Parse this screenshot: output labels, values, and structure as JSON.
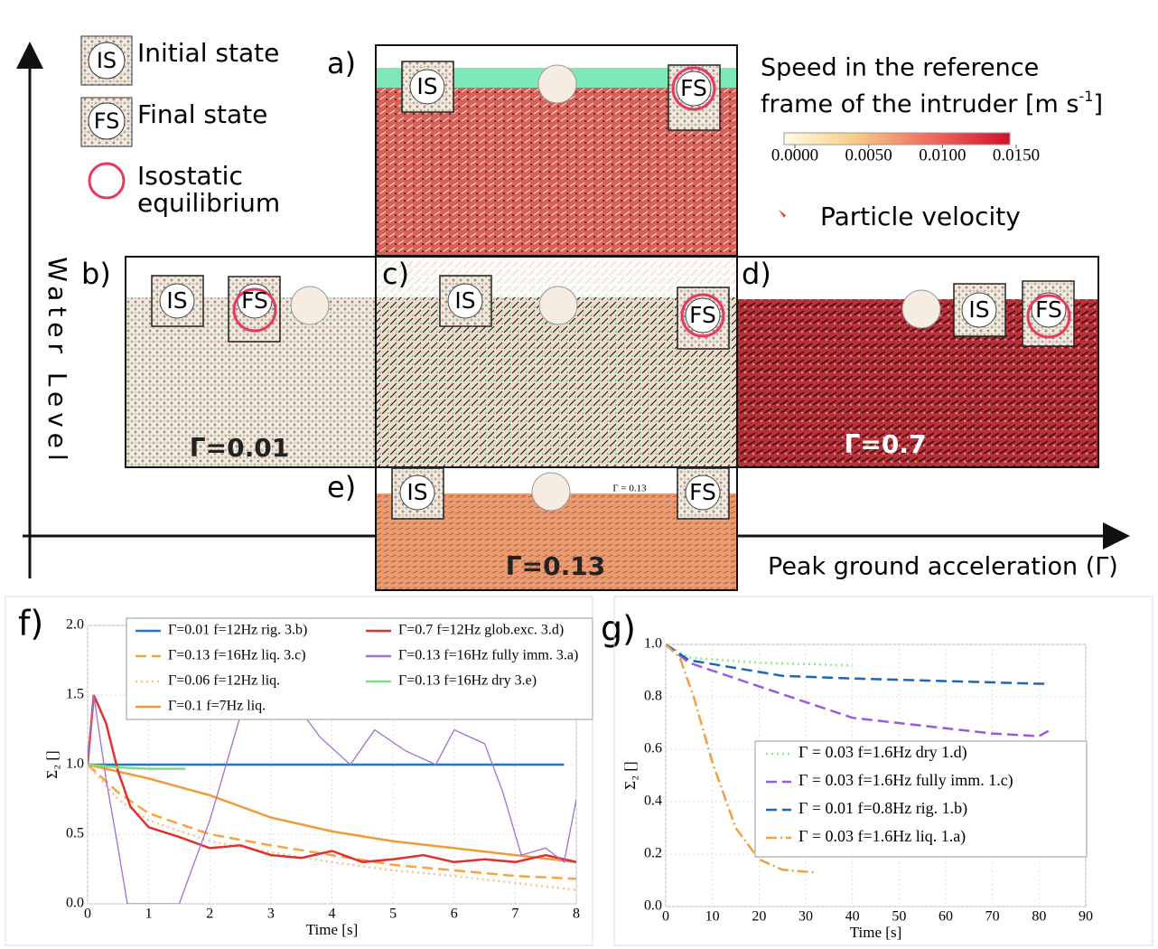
{
  "diagram": {
    "legend": {
      "initial_tag": "IS",
      "initial": "Initial state",
      "final_tag": "FS",
      "final": "Final state",
      "iso_line1": "Isostatic",
      "iso_line2": "equilibrium"
    },
    "colorbar": {
      "title_line1": "Speed in the reference",
      "title_line2": "frame of the intruder [m s",
      "title_sup": "-1",
      "title_end": "]",
      "lim": [
        0,
        0.015
      ],
      "ticks": [
        {
          "value": 0,
          "label": "0.0000"
        },
        {
          "value": 0.005,
          "label": "0.0050"
        },
        {
          "value": 0.01,
          "label": "0.0100"
        },
        {
          "value": 0.015,
          "label": "0.0150"
        }
      ]
    },
    "particle_velocity": "Particle velocity",
    "y_axis": "Water Level",
    "x_axis": "Peak ground acceleration (Γ)",
    "panels": {
      "a": "a)",
      "b": "b)",
      "c": "c)",
      "d": "d)",
      "e": "e)",
      "f": "f)",
      "g": "g)"
    },
    "tags": {
      "is": "IS",
      "fs": "FS"
    },
    "gamma": {
      "b": "Γ=0.01",
      "d": "Γ=0.7",
      "e": "Γ=0.13",
      "e_small": "Γ = 0.13"
    }
  },
  "chart_data": [
    {
      "type": "line",
      "xlabel": "Time [s]",
      "ylabel": "Σ₂ []",
      "xlim": [
        0,
        8
      ],
      "ylim": [
        0,
        2.0
      ],
      "grid": true,
      "xticks": [
        0,
        1,
        2,
        3,
        4,
        5,
        6,
        7,
        8
      ],
      "yticks": [
        {
          "value": 0,
          "label": "0.0"
        },
        {
          "value": 0.5,
          "label": "0.5"
        },
        {
          "value": 1,
          "label": "1.0"
        },
        {
          "value": 1.5,
          "label": "1.5"
        },
        {
          "value": 2,
          "label": "2.0"
        }
      ],
      "series": [
        {
          "name": "Γ=0.01 f=12Hz rig. 3.b)",
          "color": "#1f77d0",
          "linestyle": "solid",
          "x": [
            0,
            1,
            2,
            3,
            4,
            5,
            6,
            7,
            7.8
          ],
          "values": [
            1,
            1,
            1,
            1,
            1,
            1,
            1,
            1,
            1
          ]
        },
        {
          "name": "Γ=0.13 f=16Hz liq. 3.c)",
          "color": "#f5a540",
          "linestyle": "dashed",
          "x": [
            0,
            0.5,
            1,
            2,
            3,
            4,
            5,
            6,
            7,
            8
          ],
          "values": [
            1,
            0.8,
            0.65,
            0.5,
            0.42,
            0.35,
            0.28,
            0.24,
            0.2,
            0.18
          ]
        },
        {
          "name": "Γ=0.06 f=12Hz liq.",
          "color": "#f8c090",
          "linestyle": "dotted",
          "x": [
            0,
            0.5,
            1,
            2,
            3,
            4,
            5,
            6,
            7,
            8
          ],
          "values": [
            1,
            0.75,
            0.6,
            0.45,
            0.37,
            0.3,
            0.24,
            0.2,
            0.15,
            0.1
          ]
        },
        {
          "name": "Γ=0.1 f=7Hz liq.",
          "color": "#f29a3a",
          "linestyle": "solid",
          "x": [
            0,
            1,
            2,
            3,
            4,
            5,
            6,
            7,
            8
          ],
          "values": [
            1,
            0.9,
            0.78,
            0.62,
            0.52,
            0.45,
            0.4,
            0.35,
            0.3
          ]
        },
        {
          "name": "Γ=0.7 f=12Hz glob.exc. 3.d)",
          "color": "#e03030",
          "linestyle": "solid",
          "x": [
            0,
            0.1,
            0.3,
            0.5,
            0.7,
            1,
            1.5,
            2,
            2.5,
            3,
            3.5,
            4,
            4.5,
            5,
            5.5,
            6,
            6.5,
            7,
            7.5,
            8
          ],
          "values": [
            1,
            1.5,
            1.3,
            0.95,
            0.7,
            0.55,
            0.48,
            0.4,
            0.42,
            0.35,
            0.33,
            0.38,
            0.3,
            0.32,
            0.35,
            0.3,
            0.32,
            0.3,
            0.35,
            0.3
          ]
        },
        {
          "name": "Γ=0.13 f=16Hz fully imm. 3.a)",
          "color": "#a070d0",
          "linestyle": "solid",
          "x": [
            0,
            0.1,
            0.3,
            0.5,
            0.65,
            1.5,
            2,
            2.5,
            2.7,
            3.3,
            3.8,
            4.3,
            4.7,
            5.2,
            5.7,
            6,
            6.5,
            6.8,
            7.1,
            7.5,
            7.8,
            8
          ],
          "values": [
            1,
            1.5,
            0.9,
            0.4,
            0,
            0,
            0.6,
            1.35,
            2.1,
            1.5,
            1.2,
            1.0,
            1.25,
            1.1,
            1.0,
            1.25,
            1.15,
            0.8,
            0.35,
            0.4,
            0.3,
            0.75
          ]
        },
        {
          "name": "Γ=0.13 f=16Hz dry 3.e)",
          "color": "#7be07b",
          "linestyle": "solid",
          "x": [
            0,
            0.5,
            1,
            1.6
          ],
          "values": [
            1,
            0.98,
            0.97,
            0.97
          ]
        }
      ]
    },
    {
      "type": "line",
      "xlabel": "Time [s]",
      "ylabel": "Σ₂ []",
      "xlim": [
        0,
        90
      ],
      "ylim": [
        0,
        1.0
      ],
      "grid": true,
      "xticks": [
        0,
        10,
        20,
        30,
        40,
        50,
        60,
        70,
        80,
        90
      ],
      "yticks": [
        {
          "value": 0,
          "label": "0.0"
        },
        {
          "value": 0.2,
          "label": "0.2"
        },
        {
          "value": 0.4,
          "label": "0.4"
        },
        {
          "value": 0.6,
          "label": "0.6"
        },
        {
          "value": 0.8,
          "label": "0.8"
        },
        {
          "value": 1,
          "label": "1.0"
        }
      ],
      "series": [
        {
          "name": "Γ = 0.03 f=1.6Hz dry 1.d)",
          "color": "#8fe88f",
          "linestyle": "dotted",
          "x": [
            0,
            5,
            20,
            40
          ],
          "values": [
            1,
            0.95,
            0.93,
            0.92
          ]
        },
        {
          "name": "Γ = 0.03 f=1.6Hz fully imm. 1.c)",
          "color": "#9a5ae0",
          "linestyle": "dashed",
          "x": [
            0,
            5,
            10,
            20,
            30,
            40,
            50,
            60,
            70,
            80,
            82
          ],
          "values": [
            1,
            0.93,
            0.9,
            0.84,
            0.78,
            0.72,
            0.7,
            0.68,
            0.66,
            0.65,
            0.67
          ]
        },
        {
          "name": "Γ = 0.01 f=0.8Hz rig. 1.b)",
          "color": "#1f66b0",
          "linestyle": "dashed",
          "x": [
            0,
            5,
            15,
            25,
            40,
            60,
            80,
            82
          ],
          "values": [
            1,
            0.94,
            0.91,
            0.88,
            0.87,
            0.86,
            0.85,
            0.85
          ]
        },
        {
          "name": "Γ = 0.03 f=1.6Hz liq. 1.a)",
          "color": "#f0a040",
          "linestyle": "dashdot",
          "x": [
            0,
            3,
            6,
            10,
            15,
            20,
            25,
            32
          ],
          "values": [
            1,
            0.95,
            0.8,
            0.55,
            0.3,
            0.18,
            0.14,
            0.13
          ]
        }
      ]
    }
  ]
}
